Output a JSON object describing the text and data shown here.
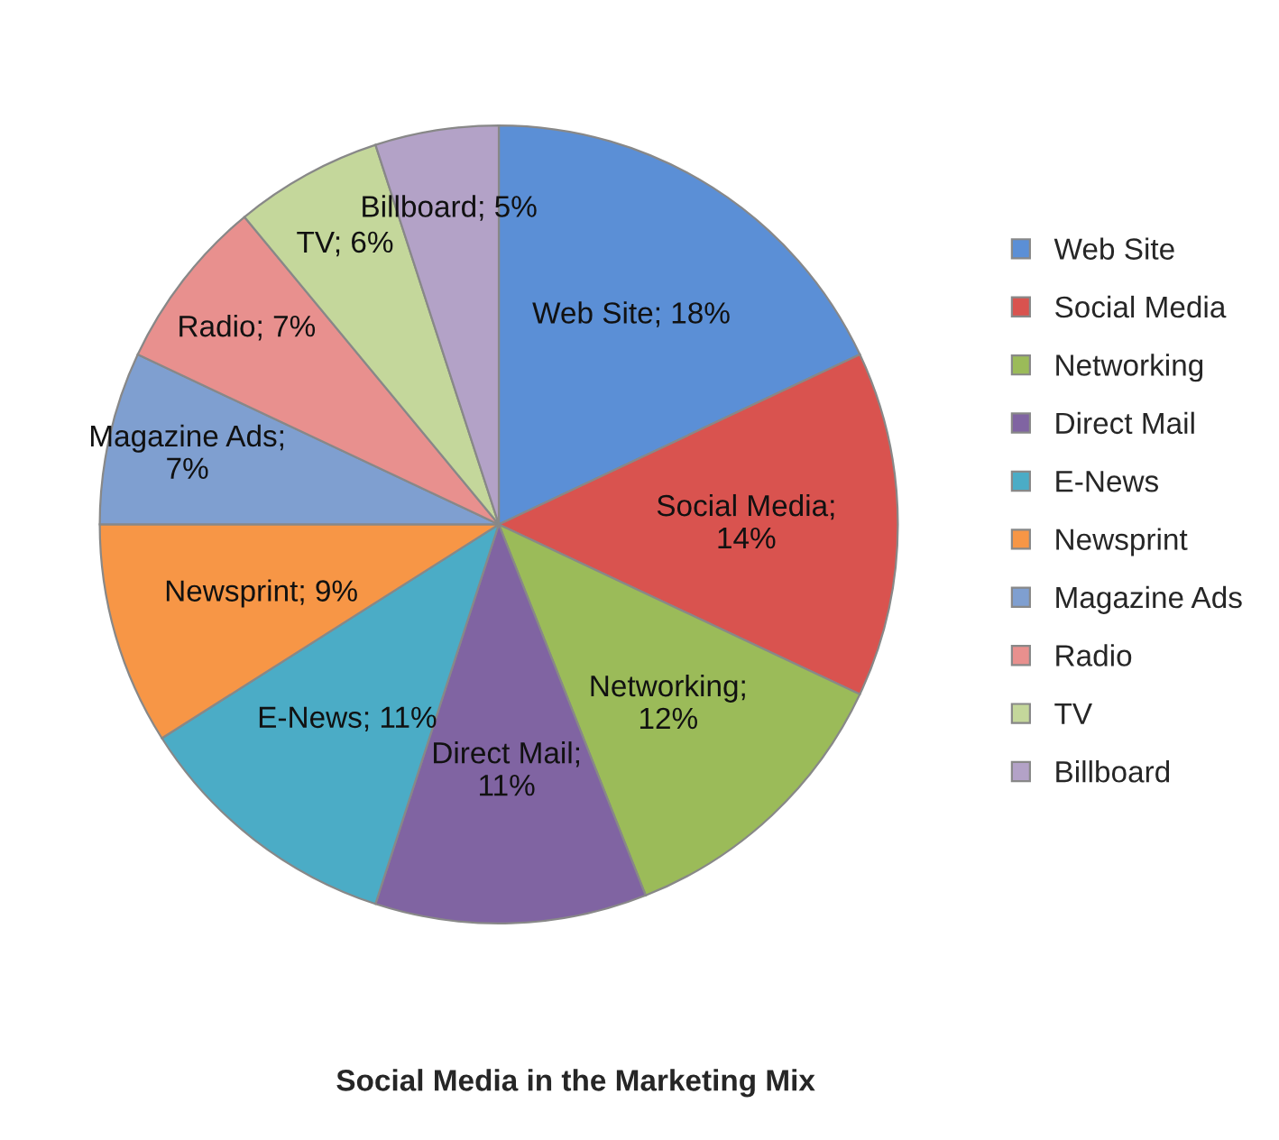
{
  "chart_data": {
    "type": "pie",
    "title": "Social Media in the Marketing Mix",
    "categories": [
      "Web Site",
      "Social Media",
      "Networking",
      "Direct Mail",
      "E-News",
      "Newsprint",
      "Magazine Ads",
      "Radio",
      "TV",
      "Billboard"
    ],
    "values": [
      18,
      14,
      12,
      11,
      11,
      9,
      7,
      7,
      6,
      5
    ],
    "value_labels": [
      "Web Site; 18%",
      "Social Media;\n14%",
      "Networking;\n12%",
      "Direct Mail;\n11%",
      "E-News; 11%",
      "Newsprint; 9%",
      "Magazine Ads;\n7%",
      "Radio; 7%",
      "TV; 6%",
      "Billboard; 5%"
    ],
    "colors": [
      "#5b8fd6",
      "#d9534f",
      "#9bbb59",
      "#8064a2",
      "#4bacc6",
      "#f79646",
      "#7f9fd0",
      "#e8908e",
      "#c4d79b",
      "#b3a2c7"
    ],
    "legend": "right"
  }
}
